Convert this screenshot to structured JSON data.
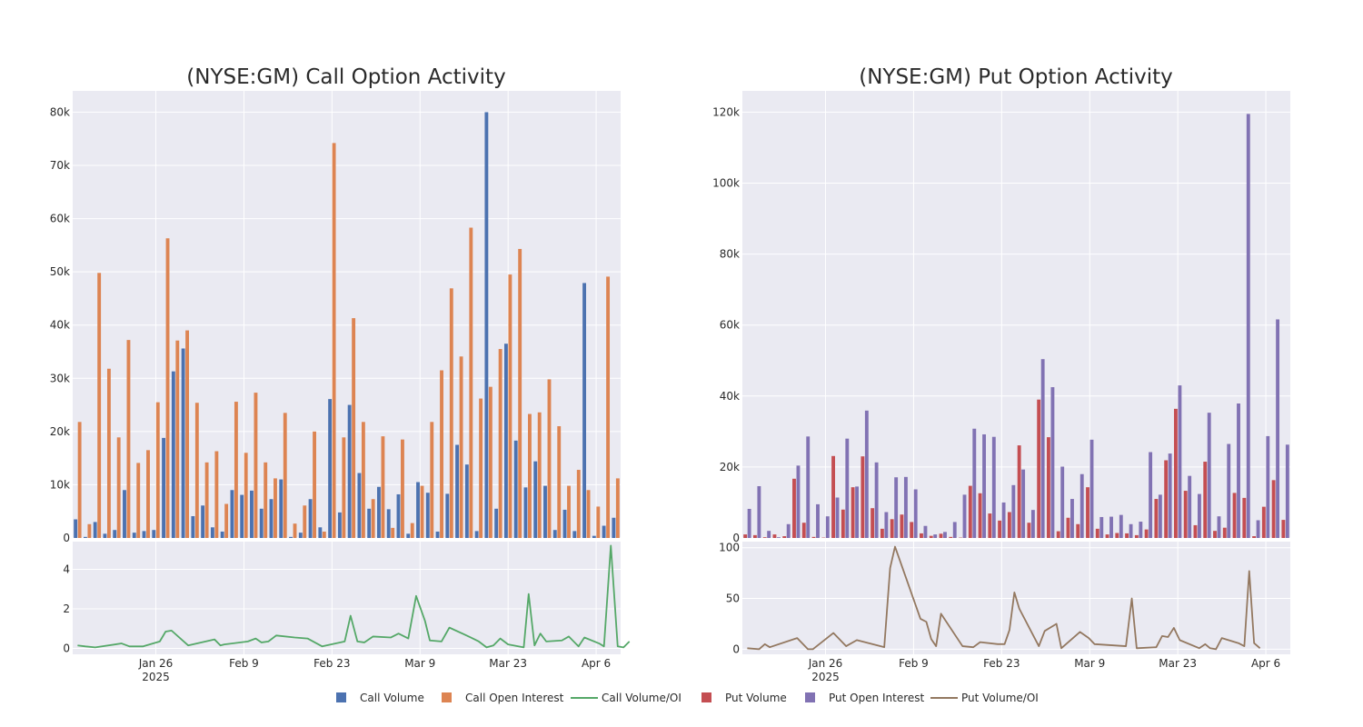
{
  "colors": {
    "call_volume": "#4c72b0",
    "call_oi": "#dd8452",
    "call_ratio": "#55a868",
    "put_volume": "#c44e52",
    "put_oi": "#8172b3",
    "put_ratio": "#937860",
    "plot_bg": "#eaeaf2",
    "grid": "#ffffff"
  },
  "legend": [
    {
      "label": "Call Volume",
      "kind": "square",
      "color_key": "call_volume"
    },
    {
      "label": "Call Open Interest",
      "kind": "square",
      "color_key": "call_oi"
    },
    {
      "label": "Call Volume/OI",
      "kind": "line",
      "color_key": "call_ratio"
    },
    {
      "label": "Put Volume",
      "kind": "square",
      "color_key": "put_volume"
    },
    {
      "label": "Put Open Interest",
      "kind": "square",
      "color_key": "put_oi"
    },
    {
      "label": "Put Volume/OI",
      "kind": "line",
      "color_key": "put_ratio"
    }
  ],
  "chart_data": [
    {
      "type": "bar",
      "panel": "call",
      "title": "(NYSE:GM) Call Option Activity",
      "x_ticks": [
        {
          "label": "Jan 26",
          "sub": "2025",
          "index": 8
        },
        {
          "label": "Feb 9",
          "index": 17
        },
        {
          "label": "Feb 23",
          "index": 26
        },
        {
          "label": "Mar 9",
          "index": 35
        },
        {
          "label": "Mar 23",
          "index": 44
        },
        {
          "label": "Apr 6",
          "index": 53
        }
      ],
      "ylim": [
        0,
        84000
      ],
      "y_ticks": [
        0,
        10000,
        20000,
        30000,
        40000,
        50000,
        60000,
        70000,
        80000
      ],
      "y_tick_labels": [
        "0",
        "10k",
        "20k",
        "30k",
        "40k",
        "50k",
        "60k",
        "70k",
        "80k"
      ],
      "series": [
        {
          "name": "Call Volume",
          "color_key": "call_volume",
          "values": [
            3500,
            200,
            3000,
            800,
            1500,
            9000,
            1000,
            1300,
            1500,
            18800,
            31300,
            35600,
            4100,
            6100,
            2000,
            1200,
            9000,
            8100,
            8900,
            5500,
            7300,
            11000,
            200,
            1000,
            7300,
            2000,
            26100,
            4800,
            25000,
            12200,
            5500,
            9600,
            5400,
            8200,
            800,
            10500,
            8500,
            1200,
            8300,
            17500,
            13800,
            1300,
            80000,
            5500,
            36500,
            18300,
            9500,
            14400,
            9800,
            1500,
            5300,
            1300,
            47900,
            400,
            2300,
            3800
          ]
        },
        {
          "name": "Call Open Interest",
          "color_key": "call_oi",
          "values": [
            21800,
            2600,
            49800,
            31800,
            18900,
            37200,
            14100,
            16500,
            25500,
            56300,
            37100,
            39000,
            25400,
            14200,
            16300,
            6400,
            25600,
            16000,
            27300,
            14200,
            11200,
            23500,
            2700,
            6100,
            20000,
            1200,
            74200,
            18900,
            41300,
            21800,
            7300,
            19100,
            1900,
            18500,
            2800,
            9800,
            21800,
            31500,
            46900,
            34100,
            58300,
            26200,
            28400,
            35500,
            49500,
            54300,
            23300,
            23600,
            29800,
            21000,
            9800,
            12800,
            9000,
            5900,
            49100,
            11200
          ]
        }
      ],
      "ratio": {
        "name": "Call Volume/OI",
        "color_key": "call_ratio",
        "ylim": [
          -0.3,
          5.4
        ],
        "y_ticks": [
          0,
          2,
          4
        ],
        "y_tick_labels": [
          "0",
          "2",
          "4"
        ],
        "points": [
          [
            0,
            0.15
          ],
          [
            0.8,
            0.1
          ],
          [
            1.8,
            0.05
          ],
          [
            4.5,
            0.25
          ],
          [
            5.3,
            0.1
          ],
          [
            6.7,
            0.1
          ],
          [
            8.4,
            0.35
          ],
          [
            9.0,
            0.85
          ],
          [
            9.6,
            0.9
          ],
          [
            11.3,
            0.15
          ],
          [
            14.0,
            0.45
          ],
          [
            14.6,
            0.15
          ],
          [
            15.0,
            0.2
          ],
          [
            17.4,
            0.35
          ],
          [
            18.2,
            0.5
          ],
          [
            18.8,
            0.3
          ],
          [
            19.5,
            0.35
          ],
          [
            20.3,
            0.65
          ],
          [
            22.2,
            0.55
          ],
          [
            23.5,
            0.5
          ],
          [
            25.0,
            0.1
          ],
          [
            27.3,
            0.35
          ],
          [
            27.9,
            1.65
          ],
          [
            28.6,
            0.35
          ],
          [
            29.3,
            0.3
          ],
          [
            30.2,
            0.6
          ],
          [
            32.0,
            0.55
          ],
          [
            32.8,
            0.75
          ],
          [
            33.8,
            0.5
          ],
          [
            34.6,
            2.65
          ],
          [
            35.5,
            1.4
          ],
          [
            36.0,
            0.4
          ],
          [
            37.2,
            0.35
          ],
          [
            38.0,
            1.05
          ],
          [
            40.2,
            0.55
          ],
          [
            41.0,
            0.35
          ],
          [
            41.8,
            0.05
          ],
          [
            42.5,
            0.15
          ],
          [
            43.2,
            0.5
          ],
          [
            44.0,
            0.2
          ],
          [
            45.6,
            0.05
          ],
          [
            46.1,
            2.75
          ],
          [
            46.7,
            0.15
          ],
          [
            47.3,
            0.75
          ],
          [
            47.9,
            0.35
          ],
          [
            49.5,
            0.4
          ],
          [
            50.2,
            0.6
          ],
          [
            51.2,
            0.1
          ],
          [
            51.8,
            0.55
          ],
          [
            53.3,
            0.25
          ],
          [
            53.8,
            0.1
          ],
          [
            54.5,
            5.2
          ],
          [
            55.2,
            0.1
          ],
          [
            55.8,
            0.05
          ],
          [
            56.4,
            0.35
          ]
        ]
      }
    },
    {
      "type": "bar",
      "panel": "put",
      "title": "(NYSE:GM) Put Option Activity",
      "x_ticks": [
        {
          "label": "Jan 26",
          "sub": "2025",
          "index": 8
        },
        {
          "label": "Feb 9",
          "index": 17
        },
        {
          "label": "Feb 23",
          "index": 26
        },
        {
          "label": "Mar 9",
          "index": 35
        },
        {
          "label": "Mar 23",
          "index": 44
        },
        {
          "label": "Apr 6",
          "index": 53
        }
      ],
      "ylim": [
        0,
        126000
      ],
      "y_ticks": [
        0,
        20000,
        40000,
        60000,
        80000,
        100000,
        120000
      ],
      "y_tick_labels": [
        "0",
        "20k",
        "40k",
        "60k",
        "80k",
        "100k",
        "120k"
      ],
      "series": [
        {
          "name": "Put Volume",
          "color_key": "put_volume",
          "values": [
            1000,
            800,
            200,
            1000,
            500,
            16700,
            4300,
            300,
            100,
            23100,
            8000,
            14300,
            23000,
            8400,
            2600,
            5300,
            6600,
            4500,
            1300,
            600,
            1200,
            300,
            100,
            14700,
            12600,
            6900,
            4900,
            7300,
            26100,
            4300,
            39000,
            28400,
            1900,
            5700,
            3900,
            14300,
            2600,
            1000,
            1400,
            1300,
            800,
            2400,
            11000,
            21900,
            36400,
            13300,
            3600,
            21500,
            2000,
            2900,
            12700,
            11300,
            500,
            8800,
            16300,
            5100
          ]
        },
        {
          "name": "Put Open Interest",
          "color_key": "put_oi",
          "values": [
            8200,
            14600,
            2000,
            200,
            3900,
            20400,
            28600,
            9500,
            6100,
            11400,
            28000,
            14500,
            35900,
            21300,
            7300,
            17100,
            17200,
            13700,
            3400,
            1000,
            1700,
            4500,
            12200,
            30800,
            29200,
            28500,
            10000,
            14900,
            19300,
            7900,
            50400,
            42500,
            20100,
            11000,
            18000,
            27700,
            5900,
            6000,
            6500,
            3900,
            4600,
            24200,
            12200,
            23800,
            43000,
            17500,
            12400,
            35300,
            6100,
            26500,
            37900,
            119500,
            5000,
            28700,
            61600,
            26300
          ]
        }
      ],
      "ratio": {
        "name": "Put Volume/OI",
        "color_key": "put_ratio",
        "ylim": [
          -5,
          106
        ],
        "y_ticks": [
          0,
          50,
          100
        ],
        "y_tick_labels": [
          "0",
          "50",
          "100"
        ],
        "points": [
          [
            0,
            1
          ],
          [
            1.2,
            0
          ],
          [
            1.8,
            5
          ],
          [
            2.3,
            2
          ],
          [
            5.1,
            11
          ],
          [
            6.2,
            0
          ],
          [
            6.7,
            0
          ],
          [
            8.8,
            16
          ],
          [
            10.1,
            3
          ],
          [
            11.2,
            9
          ],
          [
            14.0,
            2
          ],
          [
            14.6,
            80
          ],
          [
            15.1,
            101
          ],
          [
            17.7,
            30
          ],
          [
            18.3,
            27
          ],
          [
            18.8,
            10
          ],
          [
            19.3,
            3
          ],
          [
            19.8,
            35
          ],
          [
            22.0,
            3
          ],
          [
            23.1,
            2
          ],
          [
            23.8,
            7
          ],
          [
            25.6,
            5
          ],
          [
            26.3,
            5
          ],
          [
            26.8,
            19
          ],
          [
            27.3,
            56
          ],
          [
            27.8,
            40
          ],
          [
            29.8,
            3
          ],
          [
            30.4,
            18
          ],
          [
            31.6,
            25
          ],
          [
            32.1,
            1
          ],
          [
            34.0,
            17
          ],
          [
            34.9,
            11
          ],
          [
            35.5,
            5
          ],
          [
            38.7,
            3
          ],
          [
            39.3,
            50
          ],
          [
            39.8,
            1
          ],
          [
            41.8,
            2
          ],
          [
            42.4,
            13
          ],
          [
            43.0,
            12
          ],
          [
            43.6,
            21
          ],
          [
            44.2,
            9
          ],
          [
            46.2,
            1
          ],
          [
            46.8,
            5
          ],
          [
            47.3,
            1
          ],
          [
            47.9,
            0
          ],
          [
            48.5,
            11
          ],
          [
            50.2,
            6
          ],
          [
            50.8,
            3
          ],
          [
            51.3,
            77
          ],
          [
            51.8,
            6
          ],
          [
            52.4,
            1
          ]
        ]
      }
    }
  ]
}
